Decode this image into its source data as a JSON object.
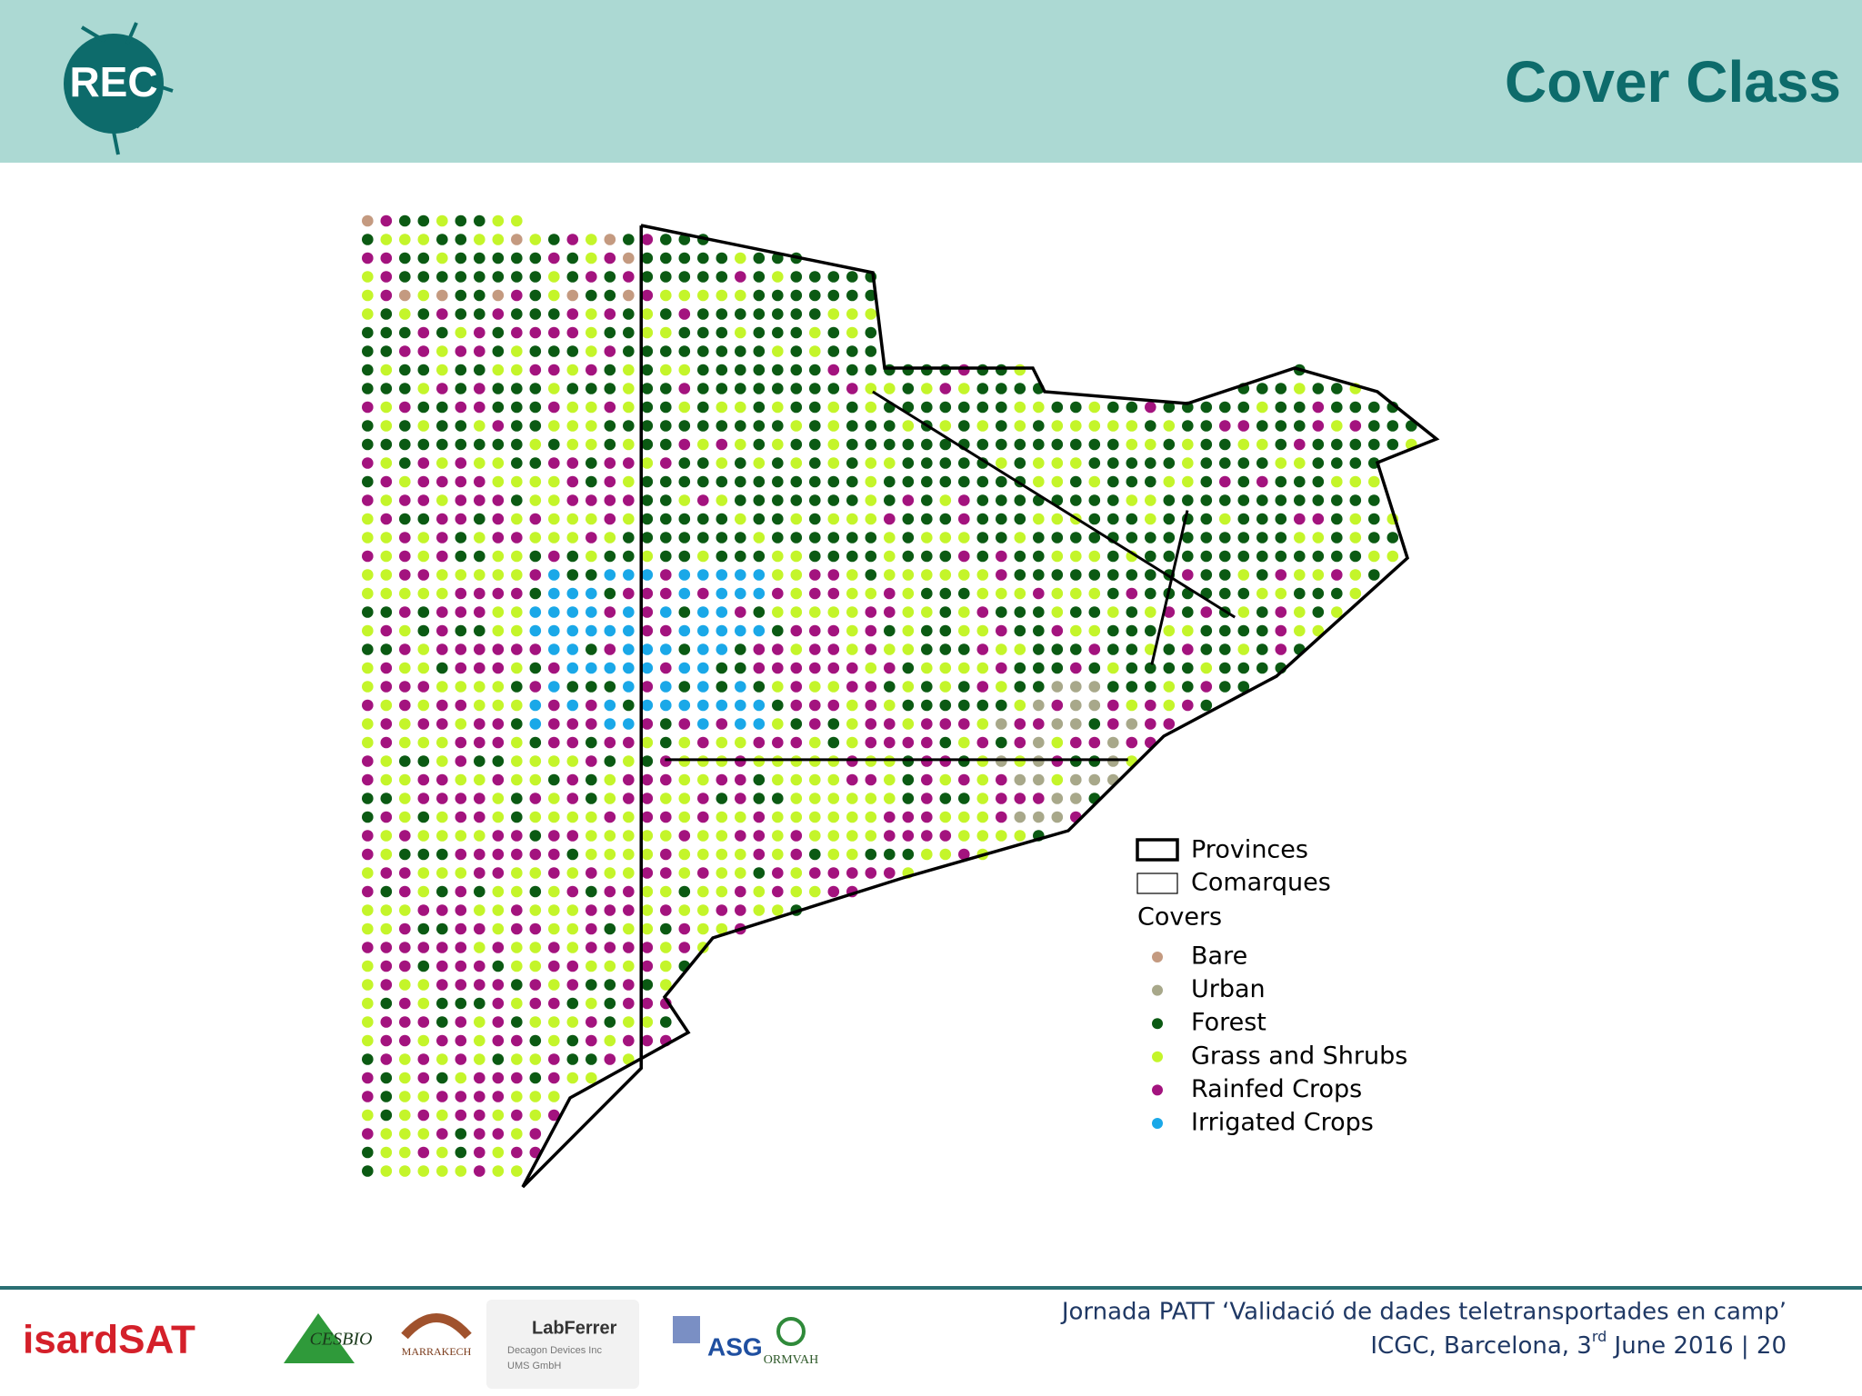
{
  "header": {
    "logo": "REC",
    "title": "Cover Class"
  },
  "legend": {
    "boundaries": [
      {
        "label": "Provinces"
      },
      {
        "label": "Comarques"
      }
    ],
    "covers_title": "Covers",
    "covers": [
      {
        "label": "Bare",
        "color": "#c49a80"
      },
      {
        "label": "Urban",
        "color": "#a8a88a"
      },
      {
        "label": "Forest",
        "color": "#0b5a13"
      },
      {
        "label": "Grass and Shrubs",
        "color": "#c4f52a"
      },
      {
        "label": "Rainfed Crops",
        "color": "#a3137e"
      },
      {
        "label": "Irrigated Crops",
        "color": "#1aa8e8"
      }
    ]
  },
  "footer": {
    "line1": "Jornada PATT ‘Validació de dades teletransportades en camp’",
    "line2_before": "ICGC, Barcelona, 3",
    "line2_sup": "rd",
    "line2_after": " June 2016 | 20"
  },
  "logos": [
    "isardSAT",
    "CESBIO",
    "MARRAKECH",
    "LabFerrer",
    "Decagon Devices Inc",
    "UMS GmbH",
    "ASG",
    "ORMVAH"
  ]
}
